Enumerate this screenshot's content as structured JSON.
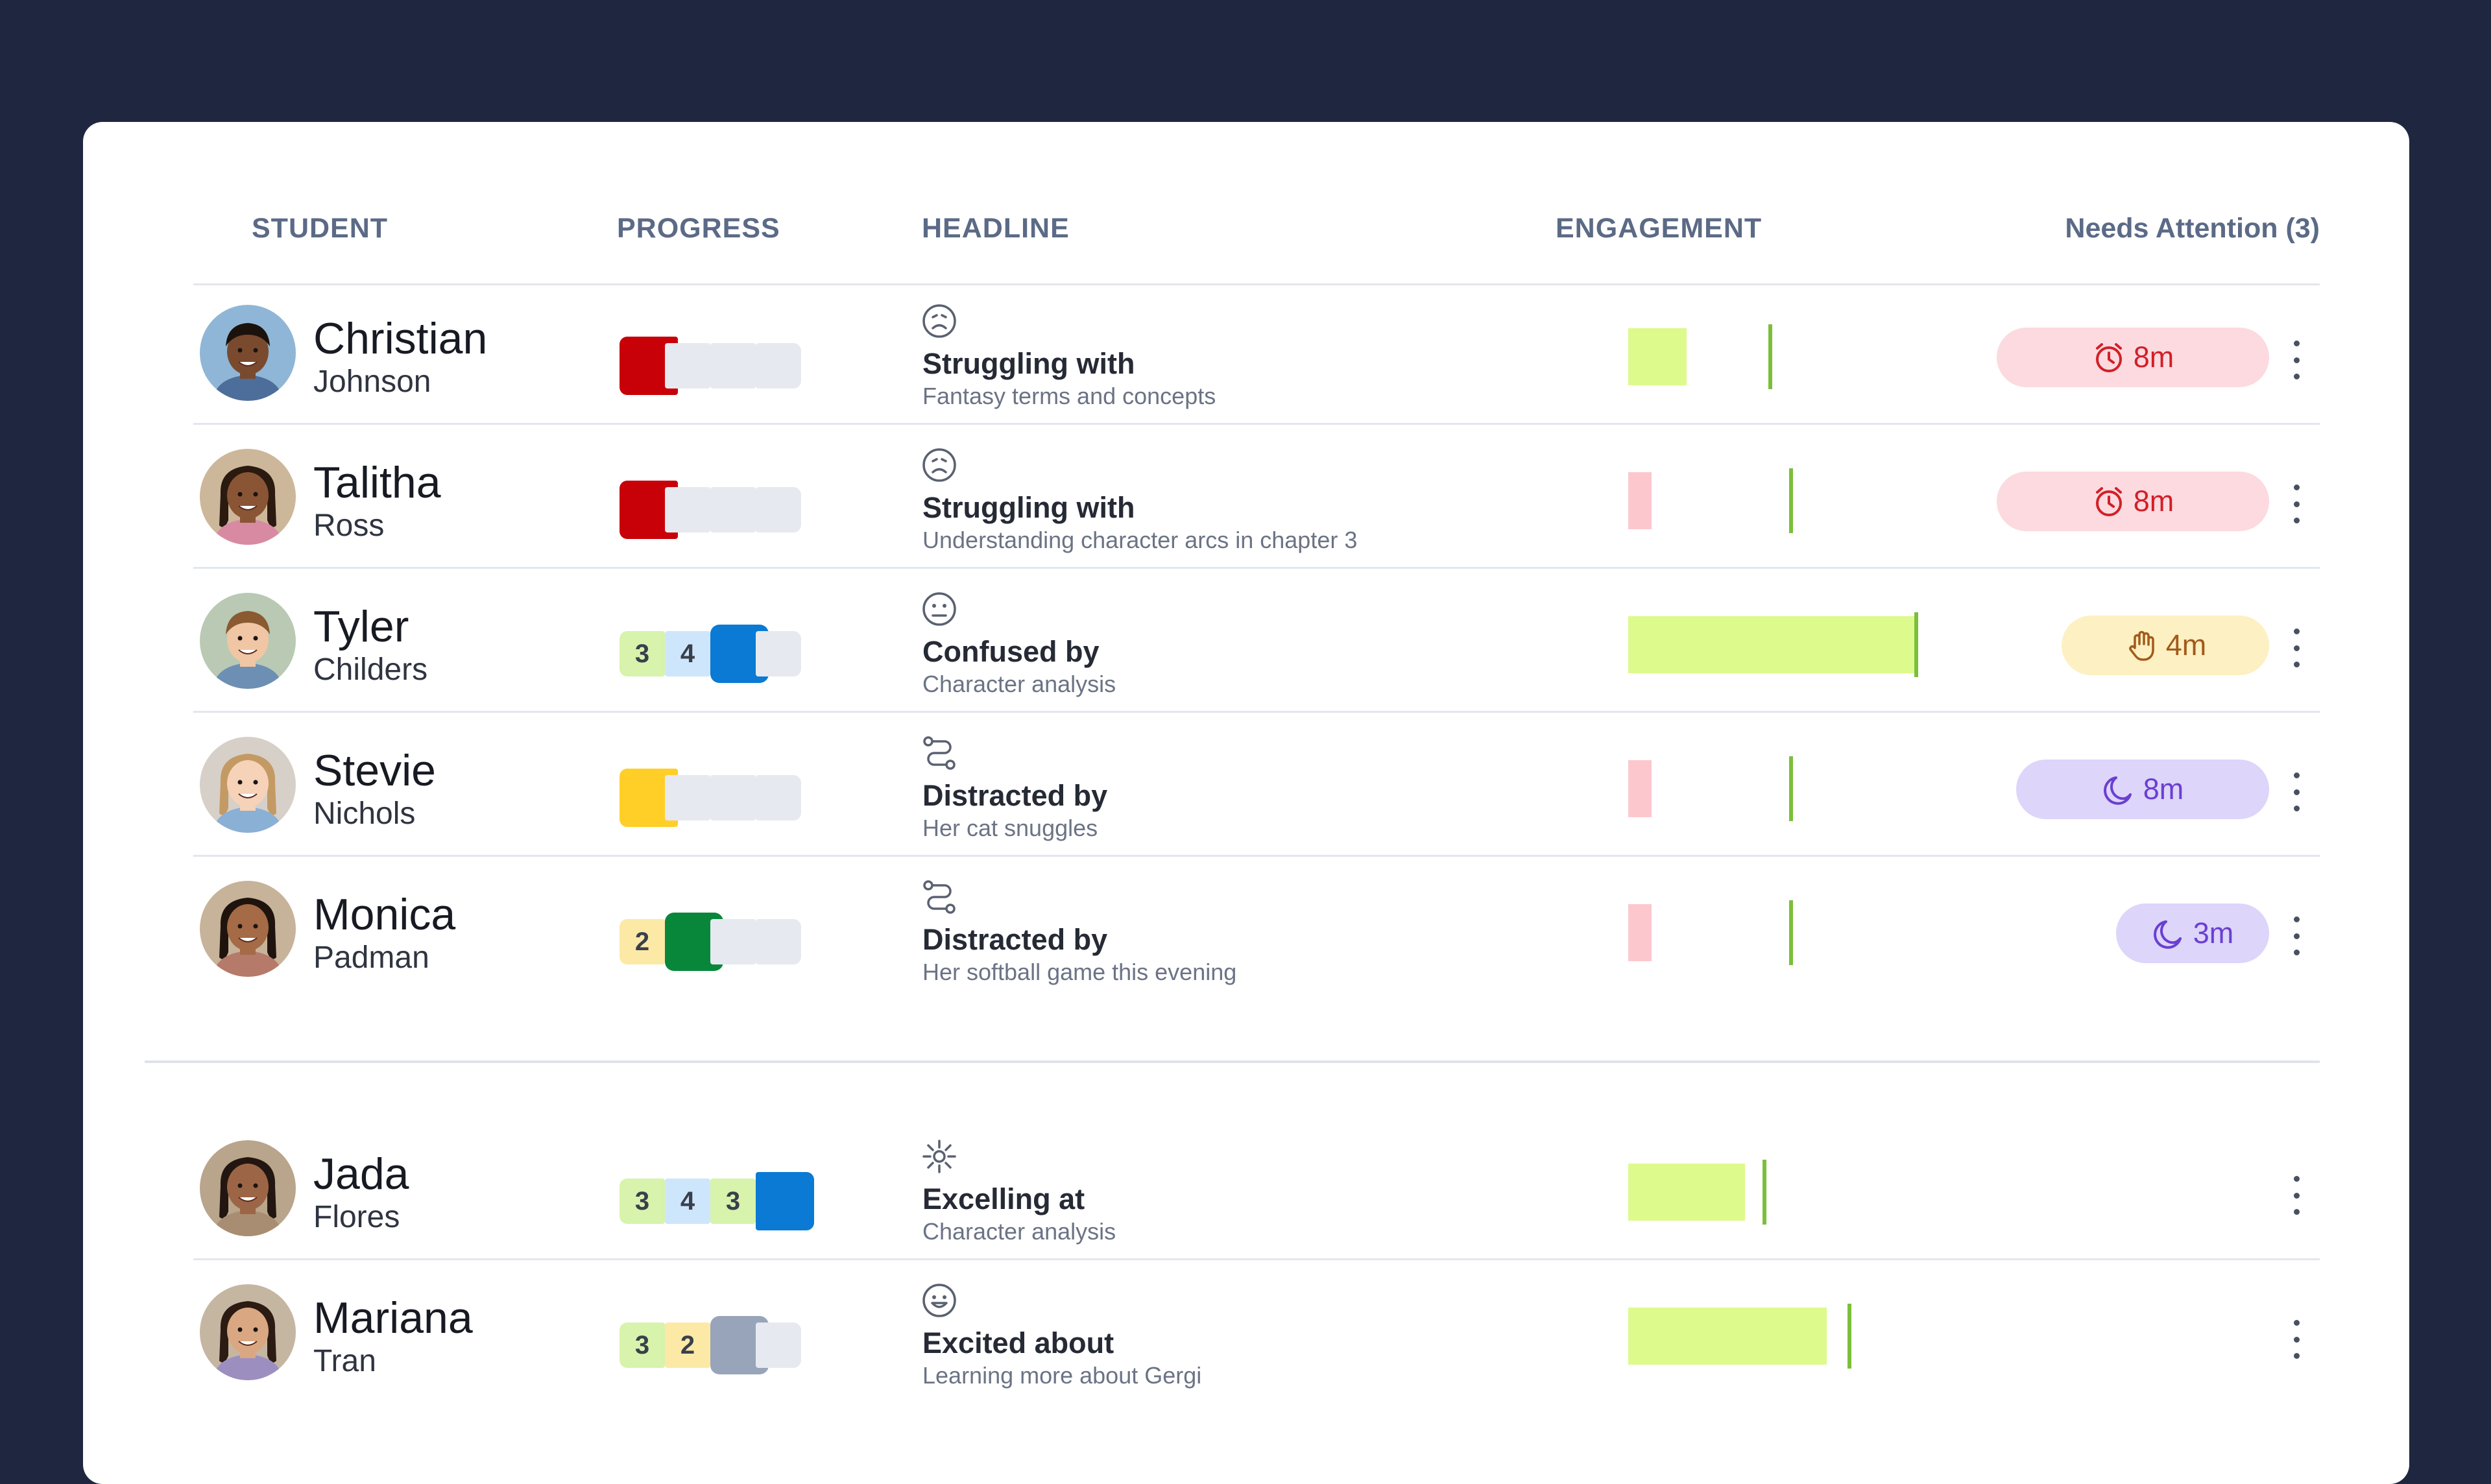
{
  "table": {
    "headers": {
      "student": "STUDENT",
      "progress": "PROGRESS",
      "headline": "HEADLINE",
      "engagement": "ENGAGEMENT",
      "needs_attention": "Needs Attention (3)"
    }
  },
  "colors": {
    "background": "#1f2740",
    "card": "#ffffff",
    "progress_red": "#c80008",
    "progress_yellow": "#ffcf28",
    "progress_blue": "#0a7ad4",
    "progress_green": "#08873a",
    "progress_gray": "#98a4b9",
    "engagement_green": "#ddfa8c",
    "engagement_pink": "#fcc8cd"
  },
  "students": [
    {
      "first": "Christian",
      "last": "Johnson",
      "progress": {
        "completed": [],
        "current_color": "#c80008",
        "current_index": 0
      },
      "headline": {
        "icon": "sad-face-icon",
        "title": "Struggling with",
        "subtitle": "Fantasy terms and concepts"
      },
      "engagement": {
        "value": 0.2,
        "marker": 0.48,
        "color": "#ddfa8c"
      },
      "attention": {
        "type": "timer-icon",
        "label": "8m",
        "style": "red"
      }
    },
    {
      "first": "Talitha",
      "last": "Ross",
      "progress": {
        "completed": [],
        "current_color": "#c80008",
        "current_index": 0
      },
      "headline": {
        "icon": "sad-face-icon",
        "title": "Struggling with",
        "subtitle": "Understanding character arcs in chapter 3"
      },
      "engagement": {
        "value": 0.08,
        "marker": 0.55,
        "color": "#fcc8cd"
      },
      "attention": {
        "type": "timer-icon",
        "label": "8m",
        "style": "red"
      }
    },
    {
      "first": "Tyler",
      "last": "Childers",
      "progress": {
        "completed": [
          {
            "num": "3",
            "color": "#d7f3ac"
          },
          {
            "num": "4",
            "color": "#cde6fb"
          }
        ],
        "current_color": "#0a7ad4",
        "current_index": 2
      },
      "headline": {
        "icon": "confused-face-icon",
        "title": "Confused by",
        "subtitle": "Character analysis"
      },
      "engagement": {
        "value": 0.98,
        "marker": 0.98,
        "color": "#ddfa8c"
      },
      "attention": {
        "type": "hand-raise-icon",
        "label": "4m",
        "style": "yellow"
      }
    },
    {
      "first": "Stevie",
      "last": "Nichols",
      "progress": {
        "completed": [],
        "current_color": "#ffcf28",
        "current_index": 0
      },
      "headline": {
        "icon": "distracted-route-icon",
        "title": "Distracted by",
        "subtitle": "Her cat snuggles"
      },
      "engagement": {
        "value": 0.08,
        "marker": 0.55,
        "color": "#fcc8cd"
      },
      "attention": {
        "type": "moon-icon",
        "label": "8m",
        "style": "purple"
      }
    },
    {
      "first": "Monica",
      "last": "Padman",
      "progress": {
        "completed": [
          {
            "num": "2",
            "color": "#fde9a6"
          }
        ],
        "current_color": "#08873a",
        "current_index": 1
      },
      "headline": {
        "icon": "distracted-route-icon",
        "title": "Distracted by",
        "subtitle": "Her softball game this evening"
      },
      "engagement": {
        "value": 0.08,
        "marker": 0.55,
        "color": "#fcc8cd"
      },
      "attention": {
        "type": "moon-icon",
        "label": "3m",
        "style": "purple"
      }
    },
    {
      "first": "Jada",
      "last": "Flores",
      "progress": {
        "completed": [
          {
            "num": "3",
            "color": "#d7f3ac"
          },
          {
            "num": "4",
            "color": "#cde6fb"
          },
          {
            "num": "3",
            "color": "#d7f3ac"
          }
        ],
        "current_color": "#0a7ad4",
        "current_index": 3
      },
      "headline": {
        "icon": "sparkle-icon",
        "title": "Excelling at",
        "subtitle": "Character analysis"
      },
      "engagement": {
        "value": 0.4,
        "marker": 0.46,
        "color": "#ddfa8c"
      },
      "attention": null
    },
    {
      "first": "Mariana",
      "last": "Tran",
      "progress": {
        "completed": [
          {
            "num": "3",
            "color": "#d7f3ac"
          },
          {
            "num": "2",
            "color": "#fde9a6"
          }
        ],
        "current_color": "#98a4b9",
        "current_index": 2
      },
      "headline": {
        "icon": "happy-face-icon",
        "title": "Excited about",
        "subtitle": "Learning more about Gergi"
      },
      "engagement": {
        "value": 0.68,
        "marker": 0.75,
        "color": "#ddfa8c"
      },
      "attention": null
    }
  ]
}
